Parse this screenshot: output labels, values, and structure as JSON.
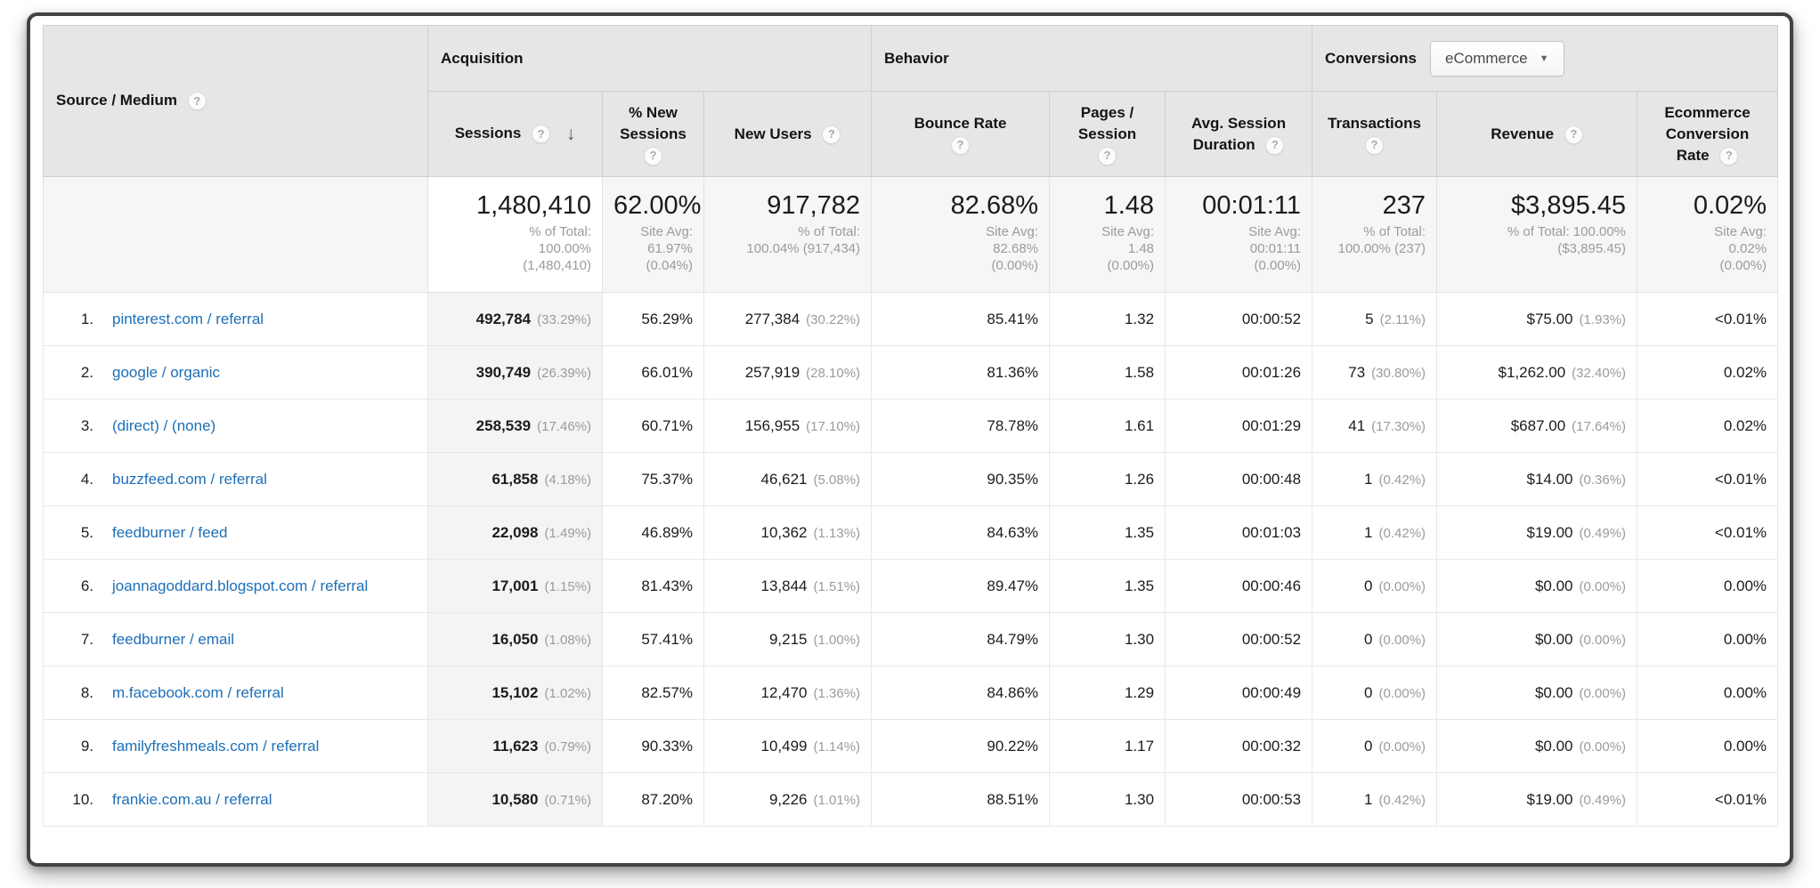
{
  "icons": {
    "help": "?",
    "sort_desc": "↓",
    "dropdown_arrow": "▼"
  },
  "colors": {
    "link": "#1D6FB8",
    "header_bg": "#E6E6E6",
    "totals_bg": "#F6F6F6",
    "sorted_column_bg": "#F4F4F4",
    "text": "#1B1B1B",
    "muted": "#9B9B9B",
    "frame_border": "#424242"
  },
  "table": {
    "header": {
      "row_label": "Source / Medium",
      "groups": {
        "acquisition": "Acquisition",
        "behavior": "Behavior",
        "conversions": "Conversions"
      },
      "conversions_dropdown": "eCommerce",
      "columns": {
        "sessions": "Sessions",
        "pct_new_sessions_l1": "% New",
        "pct_new_sessions_l2": "Sessions",
        "new_users": "New Users",
        "bounce_rate": "Bounce Rate",
        "pages_session_l1": "Pages /",
        "pages_session_l2": "Session",
        "avg_duration_l1": "Avg. Session",
        "avg_duration_l2": "Duration",
        "transactions": "Transactions",
        "revenue": "Revenue",
        "ecomm_l1": "Ecommerce",
        "ecomm_l2": "Conversion",
        "ecomm_l3": "Rate"
      }
    },
    "totals": {
      "sessions": {
        "value": "1,480,410",
        "sub": [
          "% of Total:",
          "100.00%",
          "(1,480,410)"
        ]
      },
      "new_sessions": {
        "value": "62.00%",
        "sub": [
          "Site Avg:",
          "61.97%",
          "(0.04%)"
        ]
      },
      "new_users": {
        "value": "917,782",
        "sub": [
          "% of Total:",
          "100.04% (917,434)"
        ]
      },
      "bounce": {
        "value": "82.68%",
        "sub": [
          "Site Avg:",
          "82.68%",
          "(0.00%)"
        ]
      },
      "pages": {
        "value": "1.48",
        "sub": [
          "Site Avg:",
          "1.48",
          "(0.00%)"
        ]
      },
      "duration": {
        "value": "00:01:11",
        "sub": [
          "Site Avg:",
          "00:01:11",
          "(0.00%)"
        ]
      },
      "transactions": {
        "value": "237",
        "sub": [
          "% of Total:",
          "100.00% (237)"
        ]
      },
      "revenue": {
        "value": "$3,895.45",
        "sub": [
          "% of Total: 100.00%",
          "($3,895.45)"
        ]
      },
      "conv_rate": {
        "value": "0.02%",
        "sub": [
          "Site Avg:",
          "0.02%",
          "(0.00%)"
        ]
      }
    },
    "rows": [
      {
        "rank": "1.",
        "source": "pinterest.com / referral",
        "sessions": "492,784",
        "sessions_pct": "(33.29%)",
        "new_sessions": "56.29%",
        "new_users": "277,384",
        "new_users_pct": "(30.22%)",
        "bounce": "85.41%",
        "pages": "1.32",
        "duration": "00:00:52",
        "transactions": "5",
        "transactions_pct": "(2.11%)",
        "revenue": "$75.00",
        "revenue_pct": "(1.93%)",
        "conv_rate": "<0.01%"
      },
      {
        "rank": "2.",
        "source": "google / organic",
        "sessions": "390,749",
        "sessions_pct": "(26.39%)",
        "new_sessions": "66.01%",
        "new_users": "257,919",
        "new_users_pct": "(28.10%)",
        "bounce": "81.36%",
        "pages": "1.58",
        "duration": "00:01:26",
        "transactions": "73",
        "transactions_pct": "(30.80%)",
        "revenue": "$1,262.00",
        "revenue_pct": "(32.40%)",
        "conv_rate": "0.02%"
      },
      {
        "rank": "3.",
        "source": "(direct) / (none)",
        "sessions": "258,539",
        "sessions_pct": "(17.46%)",
        "new_sessions": "60.71%",
        "new_users": "156,955",
        "new_users_pct": "(17.10%)",
        "bounce": "78.78%",
        "pages": "1.61",
        "duration": "00:01:29",
        "transactions": "41",
        "transactions_pct": "(17.30%)",
        "revenue": "$687.00",
        "revenue_pct": "(17.64%)",
        "conv_rate": "0.02%"
      },
      {
        "rank": "4.",
        "source": "buzzfeed.com / referral",
        "sessions": "61,858",
        "sessions_pct": "(4.18%)",
        "new_sessions": "75.37%",
        "new_users": "46,621",
        "new_users_pct": "(5.08%)",
        "bounce": "90.35%",
        "pages": "1.26",
        "duration": "00:00:48",
        "transactions": "1",
        "transactions_pct": "(0.42%)",
        "revenue": "$14.00",
        "revenue_pct": "(0.36%)",
        "conv_rate": "<0.01%"
      },
      {
        "rank": "5.",
        "source": "feedburner / feed",
        "sessions": "22,098",
        "sessions_pct": "(1.49%)",
        "new_sessions": "46.89%",
        "new_users": "10,362",
        "new_users_pct": "(1.13%)",
        "bounce": "84.63%",
        "pages": "1.35",
        "duration": "00:01:03",
        "transactions": "1",
        "transactions_pct": "(0.42%)",
        "revenue": "$19.00",
        "revenue_pct": "(0.49%)",
        "conv_rate": "<0.01%"
      },
      {
        "rank": "6.",
        "source": "joannagoddard.blogspot.com / referral",
        "sessions": "17,001",
        "sessions_pct": "(1.15%)",
        "new_sessions": "81.43%",
        "new_users": "13,844",
        "new_users_pct": "(1.51%)",
        "bounce": "89.47%",
        "pages": "1.35",
        "duration": "00:00:46",
        "transactions": "0",
        "transactions_pct": "(0.00%)",
        "revenue": "$0.00",
        "revenue_pct": "(0.00%)",
        "conv_rate": "0.00%"
      },
      {
        "rank": "7.",
        "source": "feedburner / email",
        "sessions": "16,050",
        "sessions_pct": "(1.08%)",
        "new_sessions": "57.41%",
        "new_users": "9,215",
        "new_users_pct": "(1.00%)",
        "bounce": "84.79%",
        "pages": "1.30",
        "duration": "00:00:52",
        "transactions": "0",
        "transactions_pct": "(0.00%)",
        "revenue": "$0.00",
        "revenue_pct": "(0.00%)",
        "conv_rate": "0.00%"
      },
      {
        "rank": "8.",
        "source": "m.facebook.com / referral",
        "sessions": "15,102",
        "sessions_pct": "(1.02%)",
        "new_sessions": "82.57%",
        "new_users": "12,470",
        "new_users_pct": "(1.36%)",
        "bounce": "84.86%",
        "pages": "1.29",
        "duration": "00:00:49",
        "transactions": "0",
        "transactions_pct": "(0.00%)",
        "revenue": "$0.00",
        "revenue_pct": "(0.00%)",
        "conv_rate": "0.00%"
      },
      {
        "rank": "9.",
        "source": "familyfreshmeals.com / referral",
        "sessions": "11,623",
        "sessions_pct": "(0.79%)",
        "new_sessions": "90.33%",
        "new_users": "10,499",
        "new_users_pct": "(1.14%)",
        "bounce": "90.22%",
        "pages": "1.17",
        "duration": "00:00:32",
        "transactions": "0",
        "transactions_pct": "(0.00%)",
        "revenue": "$0.00",
        "revenue_pct": "(0.00%)",
        "conv_rate": "0.00%"
      },
      {
        "rank": "10.",
        "source": "frankie.com.au / referral",
        "sessions": "10,580",
        "sessions_pct": "(0.71%)",
        "new_sessions": "87.20%",
        "new_users": "9,226",
        "new_users_pct": "(1.01%)",
        "bounce": "88.51%",
        "pages": "1.30",
        "duration": "00:00:53",
        "transactions": "1",
        "transactions_pct": "(0.42%)",
        "revenue": "$19.00",
        "revenue_pct": "(0.49%)",
        "conv_rate": "<0.01%"
      }
    ]
  }
}
